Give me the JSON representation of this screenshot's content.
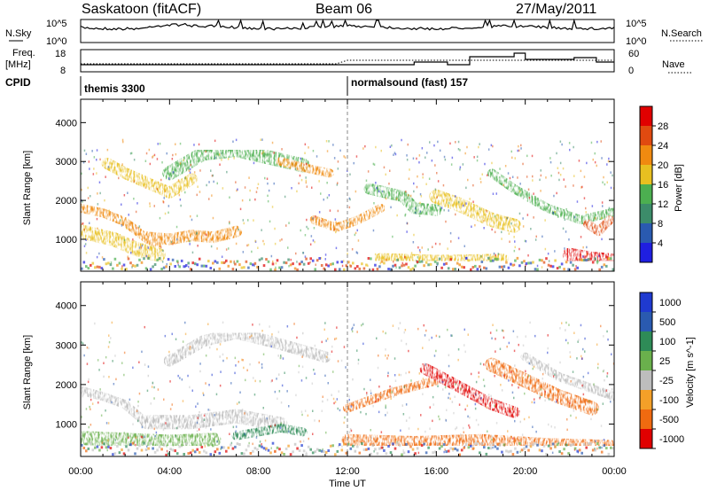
{
  "header": {
    "title_left": "Saskatoon (fitACF)",
    "title_center": "Beam 06",
    "title_right": "27/May/2011"
  },
  "sky_panel": {
    "label_left": "N.Sky",
    "ticks_left": [
      "10^5",
      "10^0"
    ],
    "ticks_right": [
      "10^5",
      "10^0"
    ],
    "label_right": "N.Search"
  },
  "freq_panel": {
    "label_left_1": "Freq.",
    "label_left_2": "[MHz]",
    "ticks_left": [
      "18",
      "8"
    ],
    "ticks_right": [
      "60",
      "0"
    ],
    "label_right": "Nave"
  },
  "cpid": {
    "label": "CPID",
    "segments": [
      {
        "name": "themis 3300",
        "start_hour": 0
      },
      {
        "name": "normalsound (fast) 157",
        "start_hour": 12
      }
    ]
  },
  "colors": {
    "power": [
      "#1f1fe0",
      "#2a5ab0",
      "#3c8c6a",
      "#4caf50",
      "#e8c020",
      "#f08a10",
      "#e04a10",
      "#e00000"
    ],
    "velocity": [
      "#e00000",
      "#f06a10",
      "#f4a028",
      "#bdbdbd",
      "#6ab04c",
      "#2e8b57",
      "#2a5ab0",
      "#1f3ad0"
    ],
    "ground": "#c8c8c8"
  },
  "chart_data": [
    {
      "type": "heatmap",
      "name": "power",
      "ylabel": "Slant Range [km]",
      "ylim": [
        180,
        4600
      ],
      "yticks": [
        1000,
        2000,
        3000,
        4000
      ],
      "xlim": [
        0,
        24
      ],
      "colorbar": {
        "label": "Power [dB]",
        "ticks": [
          "4",
          "8",
          "12",
          "16",
          "20",
          "24",
          "28"
        ],
        "range": [
          0,
          32
        ]
      },
      "features": [
        {
          "desc": "band",
          "points": [
            [
              0,
              1800
            ],
            [
              1,
              1680
            ],
            [
              2,
              1450
            ],
            [
              3,
              1000
            ],
            [
              3.5,
              900
            ]
          ],
          "level": 20
        },
        {
          "desc": "band",
          "points": [
            [
              1.2,
              2950
            ],
            [
              2,
              2700
            ],
            [
              3,
              2450
            ],
            [
              4,
              2200
            ],
            [
              5,
              2550
            ]
          ],
          "level": 16
        },
        {
          "desc": "band",
          "points": [
            [
              4,
              2700
            ],
            [
              5.5,
              3200
            ],
            [
              7,
              3300
            ],
            [
              8.5,
              3100
            ],
            [
              10,
              2900
            ]
          ],
          "level": 14
        },
        {
          "desc": "band",
          "points": [
            [
              9,
              3000
            ],
            [
              10,
              2850
            ],
            [
              11.2,
              2700
            ]
          ],
          "level": 22
        },
        {
          "desc": "band",
          "points": [
            [
              3,
              1050
            ],
            [
              4,
              1000
            ],
            [
              5,
              1100
            ],
            [
              6,
              1050
            ],
            [
              7,
              1200
            ]
          ],
          "level": 22
        },
        {
          "desc": "band",
          "points": [
            [
              0,
              1200
            ],
            [
              1.5,
              1000
            ],
            [
              2.5,
              750
            ],
            [
              3.5,
              600
            ]
          ],
          "level": 16
        },
        {
          "desc": "band",
          "points": [
            [
              10.5,
              1500
            ],
            [
              11.5,
              1300
            ],
            [
              12.5,
              1500
            ],
            [
              13.5,
              1800
            ]
          ],
          "level": 20
        },
        {
          "desc": "band",
          "points": [
            [
              13,
              2300
            ],
            [
              14.5,
              2100
            ],
            [
              15,
              1800
            ],
            [
              16,
              1750
            ]
          ],
          "level": 14
        },
        {
          "desc": "band",
          "points": [
            [
              16,
              2100
            ],
            [
              17,
              1900
            ],
            [
              18.5,
              1500
            ],
            [
              19.5,
              1350
            ]
          ],
          "level": 16
        },
        {
          "desc": "band",
          "points": [
            [
              18.5,
              2700
            ],
            [
              19.5,
              2300
            ],
            [
              21,
              1800
            ],
            [
              22.5,
              1500
            ],
            [
              24,
              1700
            ]
          ],
          "level": 14
        },
        {
          "desc": "band",
          "points": [
            [
              13.5,
              500
            ],
            [
              16,
              450
            ],
            [
              19,
              480
            ]
          ],
          "level": 16
        },
        {
          "desc": "band",
          "points": [
            [
              22,
              600
            ],
            [
              23,
              500
            ],
            [
              24,
              450
            ]
          ],
          "level": 28
        },
        {
          "desc": "band",
          "points": [
            [
              22.8,
              1400
            ],
            [
              23.3,
              1200
            ],
            [
              23.8,
              1500
            ]
          ],
          "level": 26
        }
      ]
    },
    {
      "type": "heatmap",
      "name": "velocity",
      "ylabel": "Slant Range [km]",
      "ylim": [
        180,
        4600
      ],
      "yticks": [
        1000,
        2000,
        3000,
        4000
      ],
      "xlim": [
        0,
        24
      ],
      "xticks": [
        "00:00",
        "04:00",
        "08:00",
        "12:00",
        "16:00",
        "20:00",
        "00:00"
      ],
      "xlabel": "Time UT",
      "colorbar": {
        "label": "Velocity [m s^-1]",
        "ticks": [
          "1000",
          "500",
          "100",
          "25",
          "-25",
          "-100",
          "-500",
          "-1000"
        ]
      },
      "features": [
        {
          "desc": "band",
          "points": [
            [
              0,
              1850
            ],
            [
              1,
              1700
            ],
            [
              2,
              1500
            ],
            [
              3,
              1000
            ]
          ],
          "level": 25
        },
        {
          "desc": "band",
          "points": [
            [
              4,
              2600
            ],
            [
              5.5,
              3100
            ],
            [
              7,
              3300
            ],
            [
              8.5,
              3100
            ],
            [
              11,
              2700
            ]
          ],
          "level": 25
        },
        {
          "desc": "band",
          "points": [
            [
              3,
              1050
            ],
            [
              5,
              1050
            ],
            [
              7,
              1200
            ],
            [
              9,
              1000
            ]
          ],
          "level": 25
        },
        {
          "desc": "band",
          "points": [
            [
              12,
              1400
            ],
            [
              13,
              1600
            ],
            [
              14,
              1800
            ],
            [
              16,
              2100
            ]
          ],
          "level": -100
        },
        {
          "desc": "band",
          "points": [
            [
              15.5,
              2400
            ],
            [
              16.5,
              2100
            ],
            [
              17.5,
              1800
            ],
            [
              18.5,
              1500
            ],
            [
              19.5,
              1300
            ]
          ],
          "level": -500
        },
        {
          "desc": "band",
          "points": [
            [
              18.5,
              2500
            ],
            [
              20,
              2100
            ],
            [
              21.5,
              1700
            ],
            [
              23,
              1400
            ]
          ],
          "level": -100
        },
        {
          "desc": "band",
          "points": [
            [
              20,
              2700
            ],
            [
              21.5,
              2200
            ],
            [
              22.5,
              2000
            ],
            [
              24,
              1700
            ]
          ],
          "level": 25
        },
        {
          "desc": "band",
          "points": [
            [
              12,
              600
            ],
            [
              15,
              550
            ],
            [
              18,
              600
            ],
            [
              21,
              500
            ],
            [
              24,
              450
            ]
          ],
          "level": -100
        },
        {
          "desc": "band",
          "points": [
            [
              0,
              650
            ],
            [
              2,
              600
            ],
            [
              4,
              550
            ],
            [
              6,
              600
            ]
          ],
          "level": 100
        },
        {
          "desc": "band",
          "points": [
            [
              7,
              700
            ],
            [
              9,
              900
            ],
            [
              10,
              800
            ]
          ],
          "level": 500
        }
      ]
    }
  ]
}
